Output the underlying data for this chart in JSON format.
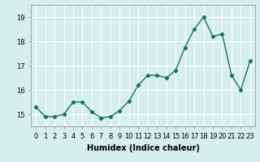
{
  "x": [
    0,
    1,
    2,
    3,
    4,
    5,
    6,
    7,
    8,
    9,
    10,
    11,
    12,
    13,
    14,
    15,
    16,
    17,
    18,
    19,
    20,
    21,
    22,
    23
  ],
  "y": [
    15.3,
    14.9,
    14.9,
    15.0,
    15.5,
    15.5,
    15.1,
    14.85,
    14.9,
    15.15,
    15.55,
    16.2,
    16.6,
    16.6,
    16.5,
    16.8,
    17.75,
    18.5,
    19.0,
    18.2,
    18.3,
    16.6,
    16.0,
    17.2
  ],
  "xlabel": "Humidex (Indice chaleur)",
  "line_color": "#1a7060",
  "marker": "D",
  "marker_size": 2.2,
  "bg_color": "#d6eeee",
  "grid_color": "#ffffff",
  "ylim": [
    14.5,
    19.5
  ],
  "yticks": [
    15,
    16,
    17,
    18,
    19
  ],
  "xticks": [
    0,
    1,
    2,
    3,
    4,
    5,
    6,
    7,
    8,
    9,
    10,
    11,
    12,
    13,
    14,
    15,
    16,
    17,
    18,
    19,
    20,
    21,
    22,
    23
  ],
  "xtick_labels": [
    "0",
    "1",
    "2",
    "3",
    "4",
    "5",
    "6",
    "7",
    "8",
    "9",
    "10",
    "11",
    "12",
    "13",
    "14",
    "15",
    "16",
    "17",
    "18",
    "19",
    "20",
    "21",
    "22",
    "23"
  ],
  "ytick_labels": [
    "15",
    "16",
    "17",
    "18",
    "19"
  ],
  "tick_fontsize": 6.0,
  "xlabel_fontsize": 7.0,
  "linewidth": 1.0
}
